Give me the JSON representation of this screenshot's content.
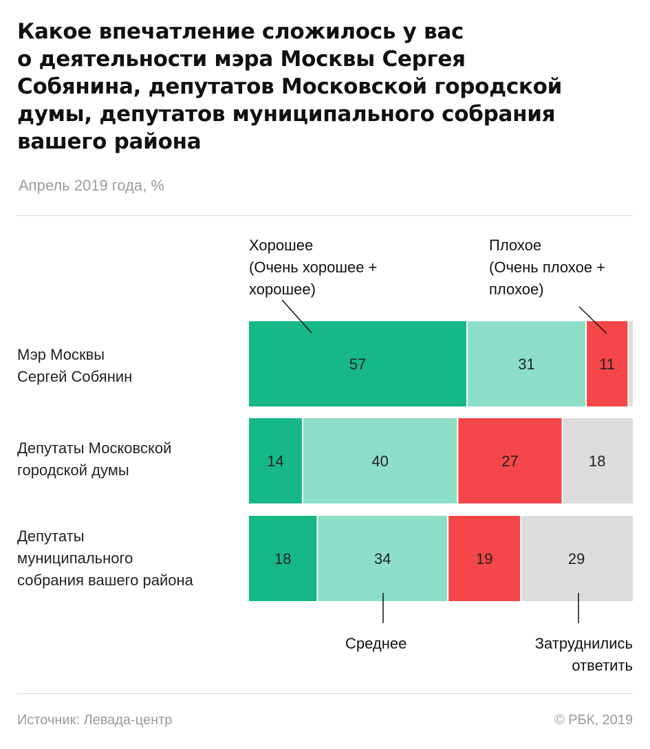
{
  "title_lines": [
    "Какое впечатление сложилось у вас",
    "о деятельности мэра Москвы Сергея",
    "Собянина, депутатов Московской городской",
    "думы, депутатов муниципального собрания",
    "вашего района"
  ],
  "subtitle": "Апрель 2019 года, %",
  "row_labels": [
    [
      "Мэр Москвы",
      "Сергей Собянин"
    ],
    [
      "Депутаты Московской",
      "городской думы"
    ],
    [
      "Депутаты",
      "муниципального",
      "собрания вашего района"
    ]
  ],
  "annotations": {
    "good": [
      "Хорошее",
      "(Очень хорошее +",
      "хорошее)"
    ],
    "bad": [
      "Плохое",
      "(Очень плохое +",
      "плохое)"
    ],
    "average": "Среднее",
    "hard": [
      "Затруднились",
      "ответить"
    ]
  },
  "footer": {
    "source": "Источник: Левада-центр",
    "copyright": "© РБК, 2019"
  },
  "chart_data": {
    "type": "bar",
    "orientation": "horizontal",
    "stacked": true,
    "title": "Какое впечатление сложилось у вас о деятельности мэра Москвы Сергея Собянина, депутатов Московской городской думы, депутатов муниципального собрания вашего района",
    "subtitle": "Апрель 2019 года, %",
    "categories": [
      "Мэр Москвы Сергей Собянин",
      "Депутаты Московской городской думы",
      "Депутаты муниципального собрания вашего района"
    ],
    "series": [
      {
        "name": "Хорошее (Очень хорошее + хорошее)",
        "color": "#16b886",
        "values": [
          57,
          14,
          18
        ]
      },
      {
        "name": "Среднее",
        "color": "#8cdec6",
        "values": [
          31,
          40,
          34
        ]
      },
      {
        "name": "Плохое (Очень плохое + плохое)",
        "color": "#f5474a",
        "values": [
          11,
          27,
          19
        ]
      },
      {
        "name": "Затруднились ответить",
        "color": "#dcdcdc",
        "values": [
          1,
          18,
          29
        ]
      }
    ],
    "data_labels_hidden_below": 5
  }
}
